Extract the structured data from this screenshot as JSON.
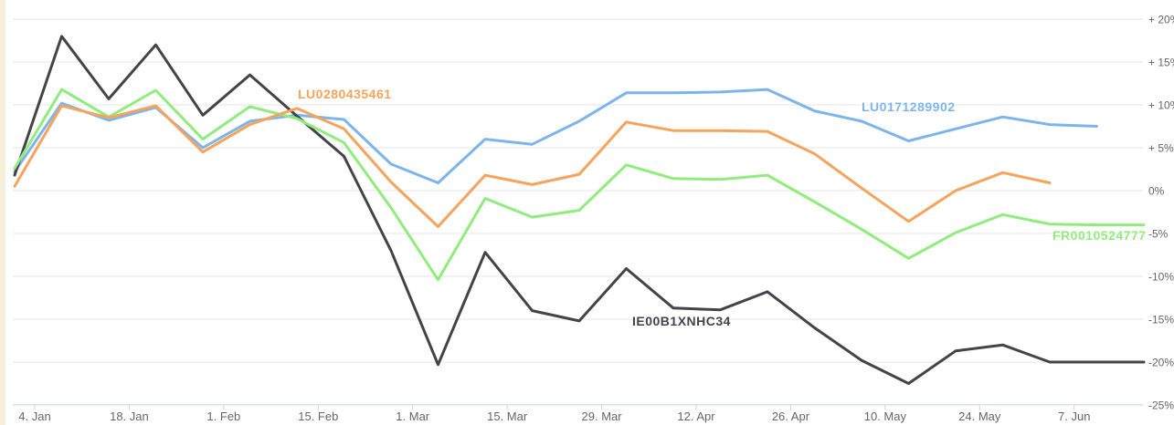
{
  "page": {
    "edge_background_color": "#f6efd9",
    "chart_background_color": "#ffffff"
  },
  "chart_data": {
    "type": "line",
    "title": "",
    "grid": "horizontal-only",
    "legend": "series-name-labels-drawn-on-lines",
    "colors": {
      "gridline": "#e6e6e6",
      "axis_line": "#ccd6eb",
      "tick_mark": "#ccd6eb",
      "axis_label_text": "#666666"
    },
    "x_axis": {
      "tick_labels": [
        "4. Jan",
        "18. Jan",
        "1. Feb",
        "15. Feb",
        "1. Mar",
        "15. Mar",
        "29. Mar",
        "12. Apr",
        "26. Apr",
        "10. May",
        "24. May",
        "7. Jun"
      ],
      "tick_interval": "14 days",
      "point_interval": "7 days"
    },
    "y_axis": {
      "position": "right",
      "unit": "%",
      "tick_labels": [
        "+ 20%",
        "+ 15%",
        "+ 10%",
        "+ 5%",
        "0%",
        "-5%",
        "-10%",
        "-15%",
        "-20%",
        "-25%"
      ],
      "tick_values": [
        20,
        15,
        10,
        5,
        0,
        -5,
        -10,
        -15,
        -20,
        -25
      ],
      "ylim": [
        -25,
        20
      ]
    },
    "x_estimated_dates": [
      "1. Jan",
      "8. Jan",
      "15. Jan",
      "22. Jan",
      "29. Jan",
      "5. Feb",
      "12. Feb",
      "19. Feb",
      "26. Feb",
      "5. Mar",
      "12. Mar",
      "19. Mar",
      "26. Mar",
      "2. Apr",
      "9. Apr",
      "16. Apr",
      "23. Apr",
      "30. Apr",
      "7. May",
      "14. May",
      "21. May",
      "28. May",
      "4. Jun",
      "11. Jun",
      "18. Jun"
    ],
    "series": [
      {
        "name": "LU0171289902",
        "color": "#7cb5ec",
        "values": [
          2.2,
          10.2,
          8.2,
          9.7,
          5.0,
          8.1,
          8.8,
          8.3,
          3.1,
          0.9,
          6.0,
          5.4,
          8.1,
          11.4,
          11.4,
          11.5,
          11.8,
          9.3,
          8.1,
          5.8,
          7.2,
          8.6,
          7.7,
          7.5,
          null
        ]
      },
      {
        "name": "IE00B1XNHC34",
        "color": "#434348",
        "values": [
          1.8,
          18.0,
          10.7,
          17.0,
          8.8,
          13.5,
          8.7,
          4.0,
          -7.0,
          -20.3,
          -7.2,
          -14.0,
          -15.2,
          -9.1,
          -13.7,
          -13.9,
          -11.8,
          -16.0,
          -19.8,
          -22.5,
          -18.7,
          -18.0,
          -20.0,
          -20.0,
          -20.0
        ]
      },
      {
        "name": "FR0010524777",
        "color": "#90ed7d",
        "values": [
          2.6,
          11.8,
          8.6,
          11.7,
          6.0,
          9.8,
          8.4,
          5.6,
          -2.0,
          -10.4,
          -0.9,
          -3.1,
          -2.3,
          3.0,
          1.4,
          1.3,
          1.8,
          -1.3,
          -4.5,
          -7.9,
          -4.9,
          -2.8,
          -3.9,
          -4.0,
          -4.0
        ]
      },
      {
        "name": "LU0280435461",
        "color": "#f7a35c",
        "values": [
          0.5,
          9.9,
          8.5,
          9.9,
          4.5,
          7.7,
          9.6,
          7.2,
          1.0,
          -4.2,
          1.8,
          0.7,
          1.9,
          8.0,
          7.0,
          7.0,
          6.9,
          4.3,
          0.3,
          -3.6,
          0.0,
          2.1,
          0.9,
          null,
          null
        ]
      }
    ]
  }
}
